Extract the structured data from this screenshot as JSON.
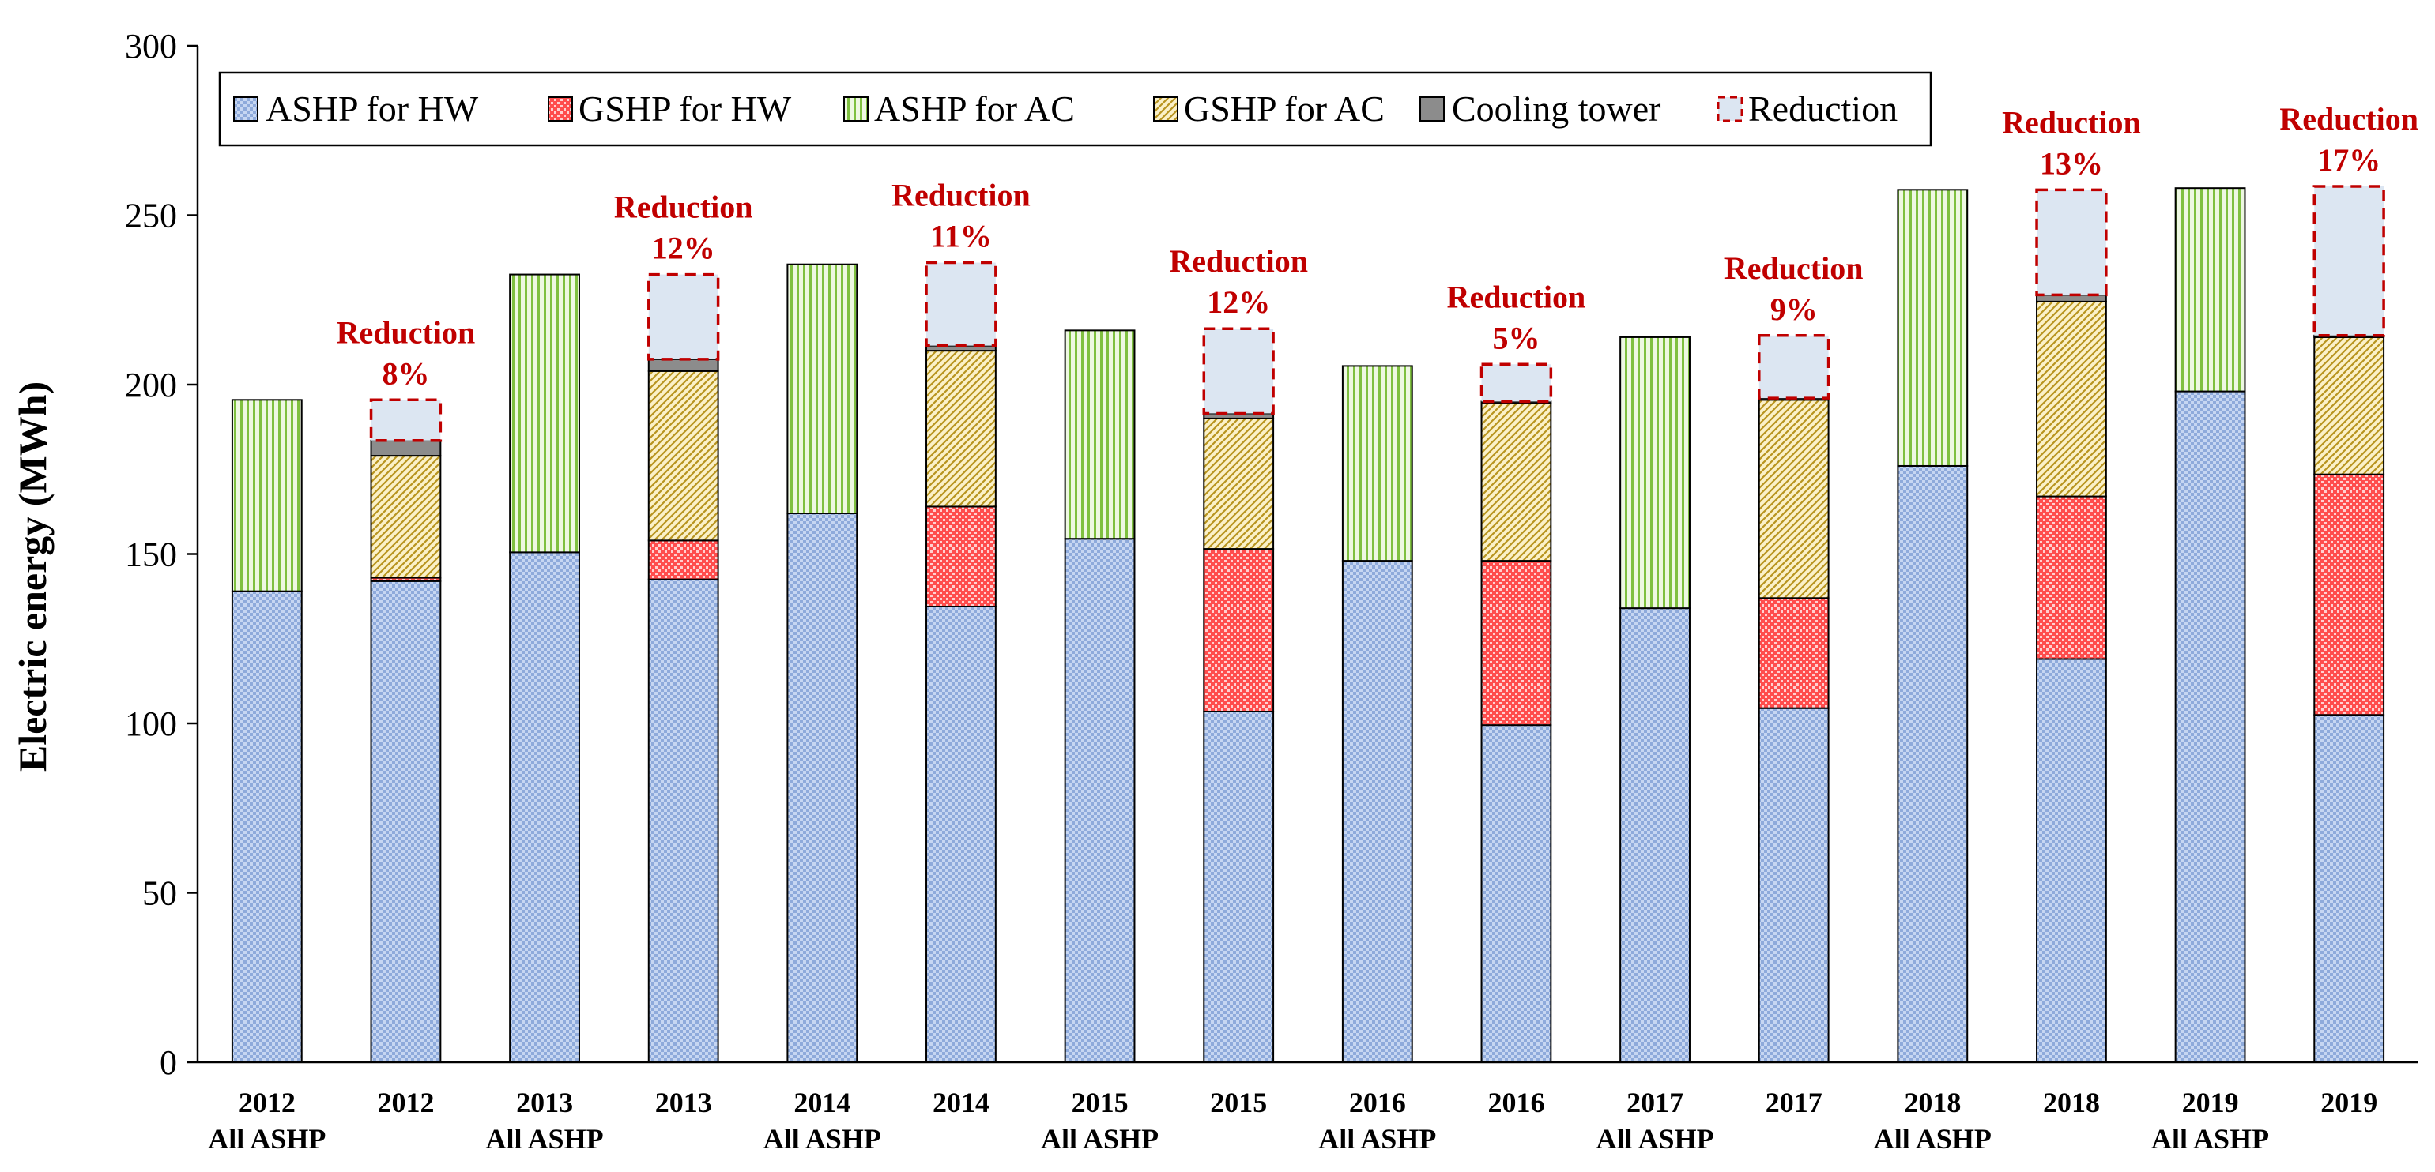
{
  "colors": {
    "ashp_hw": "#8eaadb",
    "gshp_hw": "#ff5a5a",
    "ashp_ac": "#92d050",
    "gshp_ac": "#c9a227",
    "cooling_tower": "#8c8c8c",
    "reduction_fill": "#dce6f2",
    "reduction_border": "#c00000",
    "axis": "#000000"
  },
  "chart_data": {
    "type": "bar",
    "stacked": true,
    "title": "",
    "xlabel": "",
    "ylabel": "Electric energy (MWh)",
    "ylim": [
      0,
      300
    ],
    "yticks": [
      0,
      50,
      100,
      150,
      200,
      250,
      300
    ],
    "legend_position": "top-left",
    "legend": [
      "ASHP for HW",
      "GSHP for HW",
      "ASHP for AC",
      "GSHP for AC",
      "Cooling tower",
      "Reduction"
    ],
    "categories": [
      [
        "2012",
        "All ASHP"
      ],
      [
        "2012",
        ""
      ],
      [
        "2013",
        "All ASHP"
      ],
      [
        "2013",
        ""
      ],
      [
        "2014",
        "All ASHP"
      ],
      [
        "2014",
        ""
      ],
      [
        "2015",
        "All ASHP"
      ],
      [
        "2015",
        ""
      ],
      [
        "2016",
        "All ASHP"
      ],
      [
        "2016",
        ""
      ],
      [
        "2017",
        "All ASHP"
      ],
      [
        "2017",
        ""
      ],
      [
        "2018",
        "All ASHP"
      ],
      [
        "2018",
        ""
      ],
      [
        "2019",
        "All ASHP"
      ],
      [
        "2019",
        ""
      ]
    ],
    "series": [
      {
        "name": "ASHP for HW",
        "key": "ashp_hw",
        "values": [
          139,
          142,
          150.5,
          142.5,
          162,
          134.5,
          154.5,
          103.5,
          148,
          99.5,
          134,
          104.5,
          176,
          119,
          198,
          102.5
        ]
      },
      {
        "name": "GSHP for HW",
        "key": "gshp_hw",
        "values": [
          0,
          1,
          0,
          11.5,
          0,
          29.5,
          0,
          48,
          0,
          48.5,
          0,
          32.5,
          0,
          48,
          0,
          71
        ]
      },
      {
        "name": "ASHP for AC",
        "key": "ashp_ac",
        "values": [
          56.5,
          0,
          82,
          0,
          73.5,
          0,
          61.5,
          0,
          57.5,
          0,
          80,
          0,
          81.5,
          0,
          60,
          0
        ]
      },
      {
        "name": "GSHP for AC",
        "key": "gshp_ac",
        "values": [
          0,
          36,
          0,
          50,
          0,
          46,
          0,
          38.5,
          0,
          46.5,
          0,
          58.5,
          0,
          57.5,
          0,
          40.5
        ]
      },
      {
        "name": "Cooling tower",
        "key": "cooling_tower",
        "values": [
          0,
          4.5,
          0,
          3.5,
          0,
          1.5,
          0,
          1.5,
          0,
          0.5,
          0,
          0.5,
          0,
          2,
          0,
          0.5
        ]
      },
      {
        "name": "Reduction",
        "key": "reduction",
        "values": [
          0,
          12,
          0,
          25,
          0,
          24.5,
          0,
          25,
          0,
          11,
          0,
          18.5,
          0,
          31,
          0,
          44
        ]
      }
    ],
    "annotations": [
      {
        "index": 1,
        "title": "Reduction",
        "value": "8%"
      },
      {
        "index": 3,
        "title": "Reduction",
        "value": "12%"
      },
      {
        "index": 5,
        "title": "Reduction",
        "value": "11%"
      },
      {
        "index": 7,
        "title": "Reduction",
        "value": "12%"
      },
      {
        "index": 9,
        "title": "Reduction",
        "value": "5%"
      },
      {
        "index": 11,
        "title": "Reduction",
        "value": "9%"
      },
      {
        "index": 13,
        "title": "Reduction",
        "value": "13%"
      },
      {
        "index": 15,
        "title": "Reduction",
        "value": "17%"
      }
    ]
  }
}
